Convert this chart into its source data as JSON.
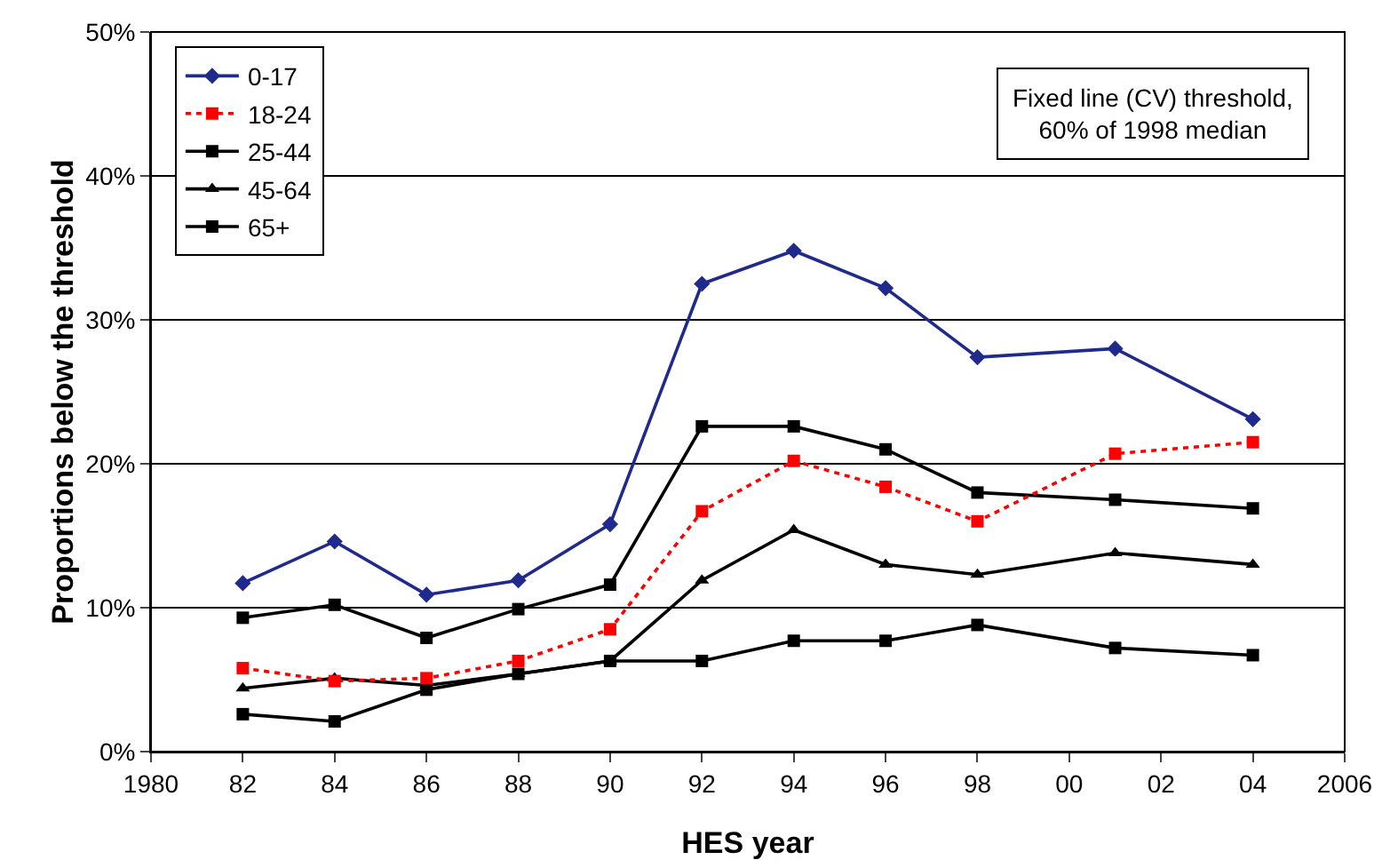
{
  "chart_data": {
    "type": "line",
    "xlabel": "HES year",
    "ylabel": "Proportions below the threshold",
    "x": [
      1982,
      1984,
      1986,
      1988,
      1990,
      1992,
      1994,
      1996,
      1998,
      2001,
      2004
    ],
    "series": [
      {
        "name": "0-17",
        "color": "#1f2a8c",
        "marker": "diamond",
        "line_style": "solid",
        "values": [
          11.7,
          14.6,
          10.9,
          11.9,
          15.8,
          32.5,
          34.8,
          32.2,
          27.4,
          28.0,
          23.1
        ]
      },
      {
        "name": "18-24",
        "color": "#ff0000",
        "marker": "square",
        "line_style": "dotted",
        "values": [
          5.8,
          4.9,
          5.1,
          6.3,
          8.5,
          16.7,
          20.2,
          18.4,
          16.0,
          20.7,
          21.5
        ]
      },
      {
        "name": "25-44",
        "color": "#000000",
        "marker": "square",
        "line_style": "solid",
        "values": [
          9.3,
          10.2,
          7.9,
          9.9,
          11.6,
          22.6,
          22.6,
          21.0,
          18.0,
          17.5,
          16.9
        ]
      },
      {
        "name": "45-64",
        "color": "#000000",
        "marker": "triangle",
        "line_style": "solid",
        "values": [
          4.4,
          5.1,
          4.6,
          5.4,
          6.3,
          11.9,
          15.4,
          13.0,
          12.3,
          13.8,
          13.0
        ]
      },
      {
        "name": "65+",
        "color": "#000000",
        "marker": "square",
        "line_style": "solid",
        "values": [
          2.6,
          2.1,
          4.3,
          5.4,
          6.3,
          6.3,
          7.7,
          7.7,
          8.8,
          7.2,
          6.7
        ]
      }
    ],
    "xlim": [
      1980,
      2006
    ],
    "xticks": [
      1980,
      {
        "value": 1982,
        "label": "82"
      },
      {
        "value": 1984,
        "label": "84"
      },
      {
        "value": 1986,
        "label": "86"
      },
      {
        "value": 1988,
        "label": "88"
      },
      {
        "value": 1990,
        "label": "90"
      },
      {
        "value": 1992,
        "label": "92"
      },
      {
        "value": 1994,
        "label": "94"
      },
      {
        "value": 1996,
        "label": "96"
      },
      {
        "value": 1998,
        "label": "98"
      },
      {
        "value": 2000,
        "label": "00"
      },
      {
        "value": 2002,
        "label": "02"
      },
      {
        "value": 2004,
        "label": "04"
      },
      2006
    ],
    "ylim": [
      0,
      50
    ],
    "yticks": [
      {
        "value": 0,
        "label": "0%"
      },
      {
        "value": 10,
        "label": "10%"
      },
      {
        "value": 20,
        "label": "20%"
      },
      {
        "value": 30,
        "label": "30%"
      },
      {
        "value": 40,
        "label": "40%"
      },
      {
        "value": 50,
        "label": "50%"
      }
    ],
    "grid": "y",
    "legend": "top left",
    "annotations": [
      "Fixed line (CV) threshold,\n60% of 1998 median"
    ]
  }
}
